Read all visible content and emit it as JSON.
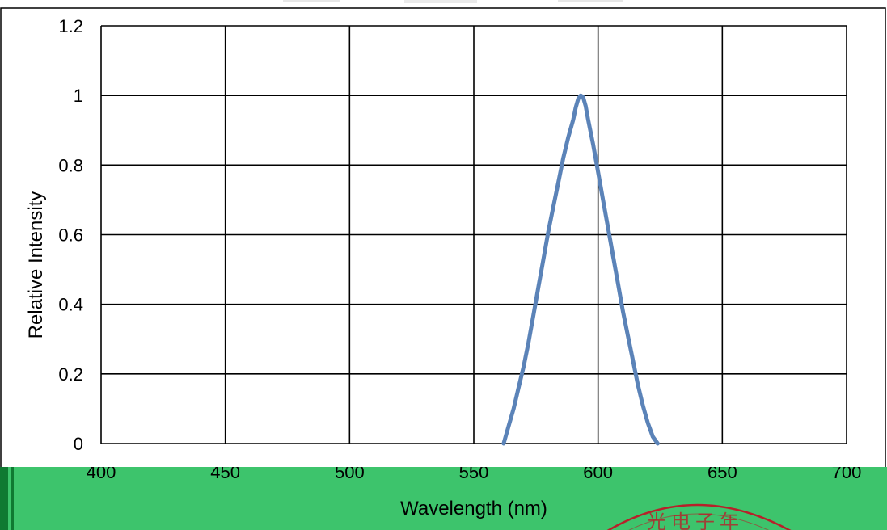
{
  "colors": {
    "series_line": "#5b83b8",
    "grid": "#000000",
    "overlay_band": "#3dc46c",
    "seal_red": "#b8202a"
  },
  "chart_data": {
    "type": "line",
    "title": "",
    "xlabel": "Wavelength (nm)",
    "ylabel": "Relative Intensity",
    "xlim": [
      400,
      700
    ],
    "ylim": [
      0,
      1.2
    ],
    "x_ticks": [
      400,
      450,
      500,
      550,
      600,
      650,
      700
    ],
    "y_ticks": [
      "0",
      "0.2",
      "0.4",
      "0.6",
      "0.8",
      "1",
      "1.2"
    ],
    "grid": true,
    "legend": "none",
    "series": [
      {
        "x": [
          562,
          564,
          566,
          568,
          570,
          572,
          574,
          576,
          578,
          580,
          582,
          584,
          586,
          588,
          590,
          591,
          592,
          593,
          594,
          595,
          596,
          598,
          600,
          602,
          604,
          606,
          608,
          610,
          612,
          614,
          616,
          618,
          620,
          622,
          624
        ],
        "y": [
          0.0,
          0.05,
          0.1,
          0.16,
          0.22,
          0.29,
          0.37,
          0.45,
          0.53,
          0.61,
          0.68,
          0.75,
          0.82,
          0.88,
          0.93,
          0.965,
          0.99,
          1.0,
          0.995,
          0.97,
          0.93,
          0.86,
          0.78,
          0.7,
          0.62,
          0.54,
          0.46,
          0.38,
          0.31,
          0.24,
          0.17,
          0.11,
          0.06,
          0.02,
          0.0
        ]
      }
    ]
  },
  "watermark": {
    "seal_text": "光电子年"
  }
}
